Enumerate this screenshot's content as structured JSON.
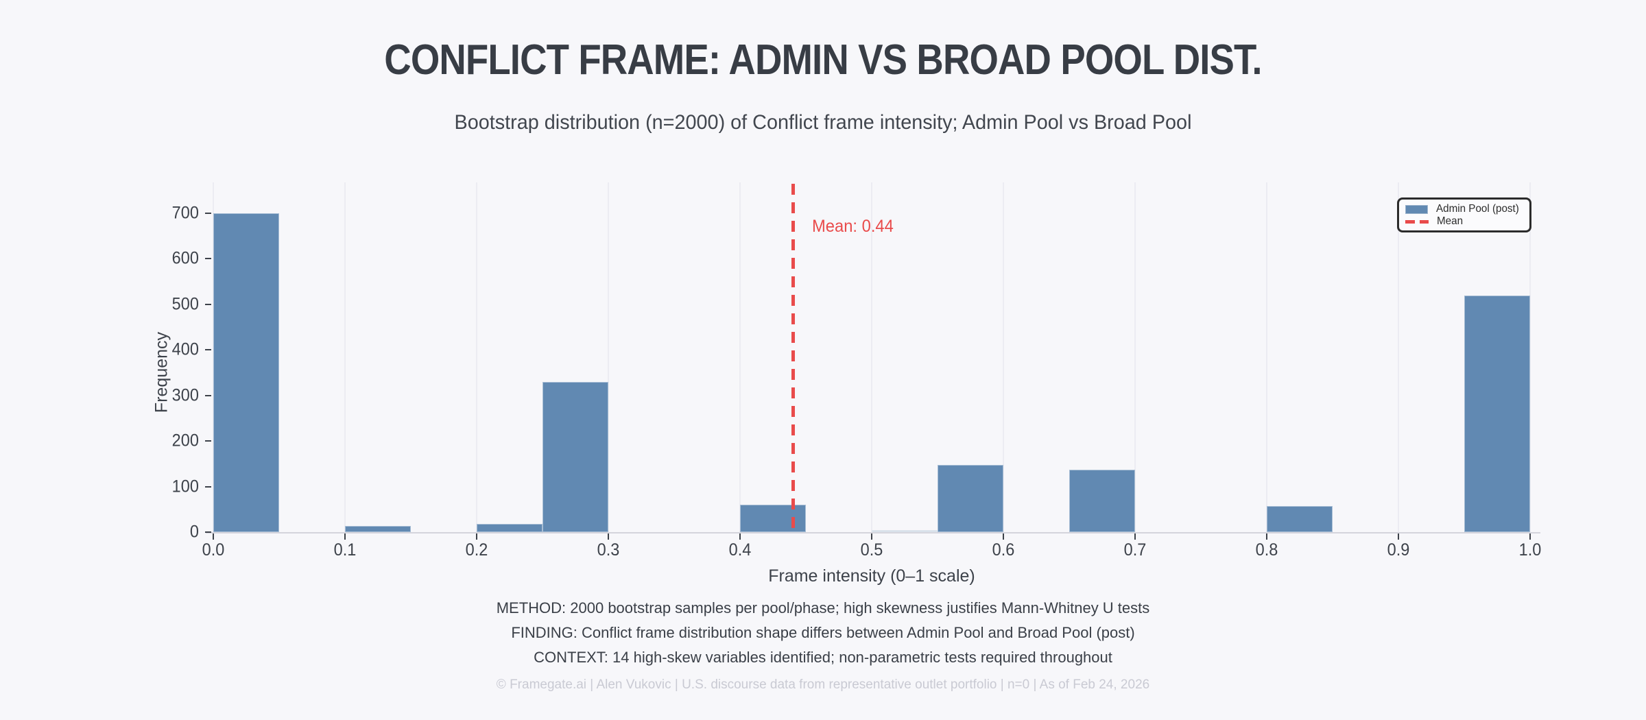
{
  "header": {
    "title": "CONFLICT FRAME: ADMIN VS BROAD POOL DIST.",
    "subtitle": "Bootstrap distribution (n=2000) of Conflict frame intensity; Admin Pool vs Broad Pool"
  },
  "chart_data": {
    "type": "bar",
    "subtype": "histogram",
    "title": "CONFLICT FRAME: ADMIN VS BROAD POOL DIST.",
    "subtitle": "Bootstrap distribution (n=2000) of Conflict frame intensity; Admin Pool vs Broad Pool",
    "xlabel": "Frame intensity (0–1 scale)",
    "ylabel": "Frequency",
    "xlim": [
      0.0,
      1.0
    ],
    "ylim": [
      0,
      700
    ],
    "x_ticks": [
      0.0,
      0.1,
      0.2,
      0.3,
      0.4,
      0.5,
      0.6,
      0.7,
      0.8,
      0.9,
      1.0
    ],
    "x_tick_labels": [
      "0.0",
      "0.1",
      "0.2",
      "0.3",
      "0.4",
      "0.5",
      "0.6",
      "0.7",
      "0.8",
      "0.9",
      "1.0"
    ],
    "y_ticks": [
      0,
      100,
      200,
      300,
      400,
      500,
      600,
      700
    ],
    "grid": "vertical",
    "legend_position": "top-right",
    "series_name": "Admin Pool (post)",
    "bins": [
      {
        "x0": 0.0,
        "x1": 0.05,
        "value": 700,
        "muted": false
      },
      {
        "x0": 0.1,
        "x1": 0.15,
        "value": 14,
        "muted": false
      },
      {
        "x0": 0.2,
        "x1": 0.25,
        "value": 18,
        "muted": false
      },
      {
        "x0": 0.25,
        "x1": 0.3,
        "value": 330,
        "muted": false
      },
      {
        "x0": 0.4,
        "x1": 0.45,
        "value": 60,
        "muted": false
      },
      {
        "x0": 0.5,
        "x1": 0.55,
        "value": 5,
        "muted": true
      },
      {
        "x0": 0.55,
        "x1": 0.6,
        "value": 148,
        "muted": false
      },
      {
        "x0": 0.65,
        "x1": 0.7,
        "value": 137,
        "muted": false
      },
      {
        "x0": 0.8,
        "x1": 0.85,
        "value": 57,
        "muted": false
      },
      {
        "x0": 0.95,
        "x1": 1.0,
        "value": 520,
        "muted": false
      }
    ],
    "mean": {
      "value": 0.44,
      "annotation": "Mean: 0.44"
    },
    "legend": {
      "admin_label": "Admin Pool (post)",
      "mean_label": "Mean"
    },
    "colors": {
      "bar": "#6189b2",
      "bar_muted": "#ccd7e4",
      "mean": "#e94b4b",
      "grid": "#ececf2",
      "axis": "#d4d4dc",
      "text": "#3d424a",
      "annotation": "#e94b4b"
    }
  },
  "notes": {
    "line1": "METHOD: 2000 bootstrap samples per pool/phase; high skewness justifies Mann-Whitney U tests",
    "line2": "FINDING: Conflict frame distribution shape differs between Admin Pool and Broad Pool (post)",
    "line3": "CONTEXT: 14 high-skew variables identified; non-parametric tests required throughout"
  },
  "footer": {
    "text": "© Framegate.ai | Alen Vukovic | U.S. discourse data from representative outlet portfolio | n=0 | As of Feb 24, 2026"
  }
}
